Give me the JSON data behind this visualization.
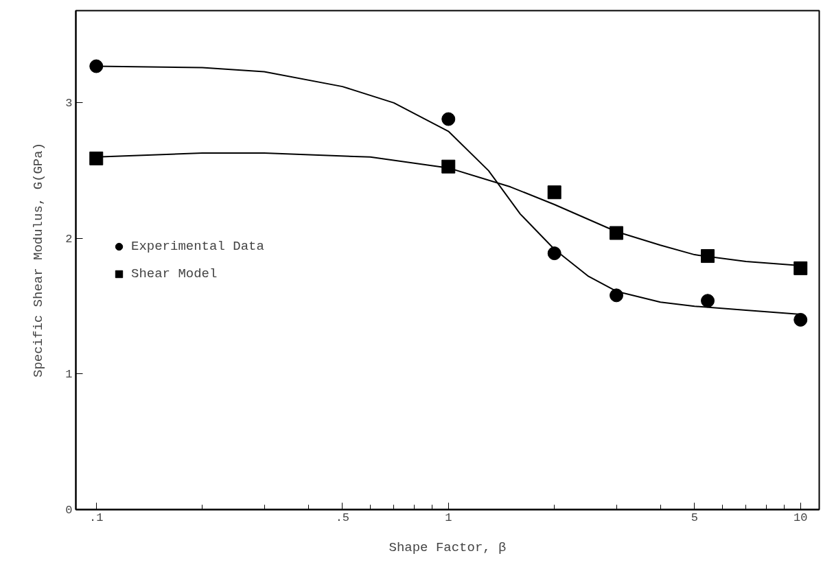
{
  "chart_data": {
    "type": "scatter",
    "xlabel": "Shape Factor, β",
    "ylabel": "Specific Shear Modulus, G(GPa)",
    "log": "x",
    "grid": false,
    "legend": "left",
    "xlim": [
      0.0875,
      11.3
    ],
    "ylim": [
      0,
      3.68
    ],
    "xticks": [
      {
        "value": 0.1,
        "label": ".1"
      },
      {
        "value": 0.2,
        "label": null
      },
      {
        "value": 0.3,
        "label": null
      },
      {
        "value": 0.4,
        "label": null
      },
      {
        "value": 0.5,
        "label": ".5"
      },
      {
        "value": 0.6,
        "label": null
      },
      {
        "value": 0.7,
        "label": null
      },
      {
        "value": 0.8,
        "label": null
      },
      {
        "value": 0.9,
        "label": null
      },
      1,
      {
        "value": 2,
        "label": null
      },
      {
        "value": 3,
        "label": null
      },
      {
        "value": 4,
        "label": null
      },
      5,
      {
        "value": 6,
        "label": null
      },
      {
        "value": 7,
        "label": null
      },
      {
        "value": 8,
        "label": null
      },
      {
        "value": 9,
        "label": null
      },
      10
    ],
    "yticks": [
      0,
      1,
      2,
      3
    ],
    "series": [
      {
        "name": "Experimental Data",
        "marker": "circle",
        "color": "#000000",
        "x": [
          0.1,
          1,
          2,
          3,
          5.45,
          10
        ],
        "values": [
          3.27,
          2.88,
          1.89,
          1.58,
          1.54,
          1.4
        ]
      },
      {
        "name": "Shear Model",
        "marker": "square",
        "color": "#000000",
        "x": [
          0.1,
          1,
          2,
          3,
          5.45,
          10
        ],
        "values": [
          2.59,
          2.53,
          2.34,
          2.04,
          1.87,
          1.78
        ]
      },
      {
        "type": "line",
        "marker": "none",
        "line_style": "solid",
        "color": "#000000",
        "x": [
          0.1,
          0.2,
          0.3,
          0.5,
          0.7,
          1,
          1.3,
          1.6,
          2,
          2.5,
          3,
          4,
          5,
          7,
          10
        ],
        "values": [
          3.27,
          3.26,
          3.23,
          3.12,
          3.0,
          2.79,
          2.5,
          2.18,
          1.92,
          1.72,
          1.61,
          1.53,
          1.5,
          1.47,
          1.44
        ]
      },
      {
        "type": "line",
        "marker": "none",
        "line_style": "solid",
        "color": "#000000",
        "x": [
          0.1,
          0.2,
          0.3,
          0.6,
          1,
          1.5,
          2,
          3,
          4,
          5,
          7,
          10
        ],
        "values": [
          2.6,
          2.63,
          2.63,
          2.6,
          2.52,
          2.38,
          2.25,
          2.05,
          1.95,
          1.88,
          1.83,
          1.8
        ]
      }
    ]
  }
}
